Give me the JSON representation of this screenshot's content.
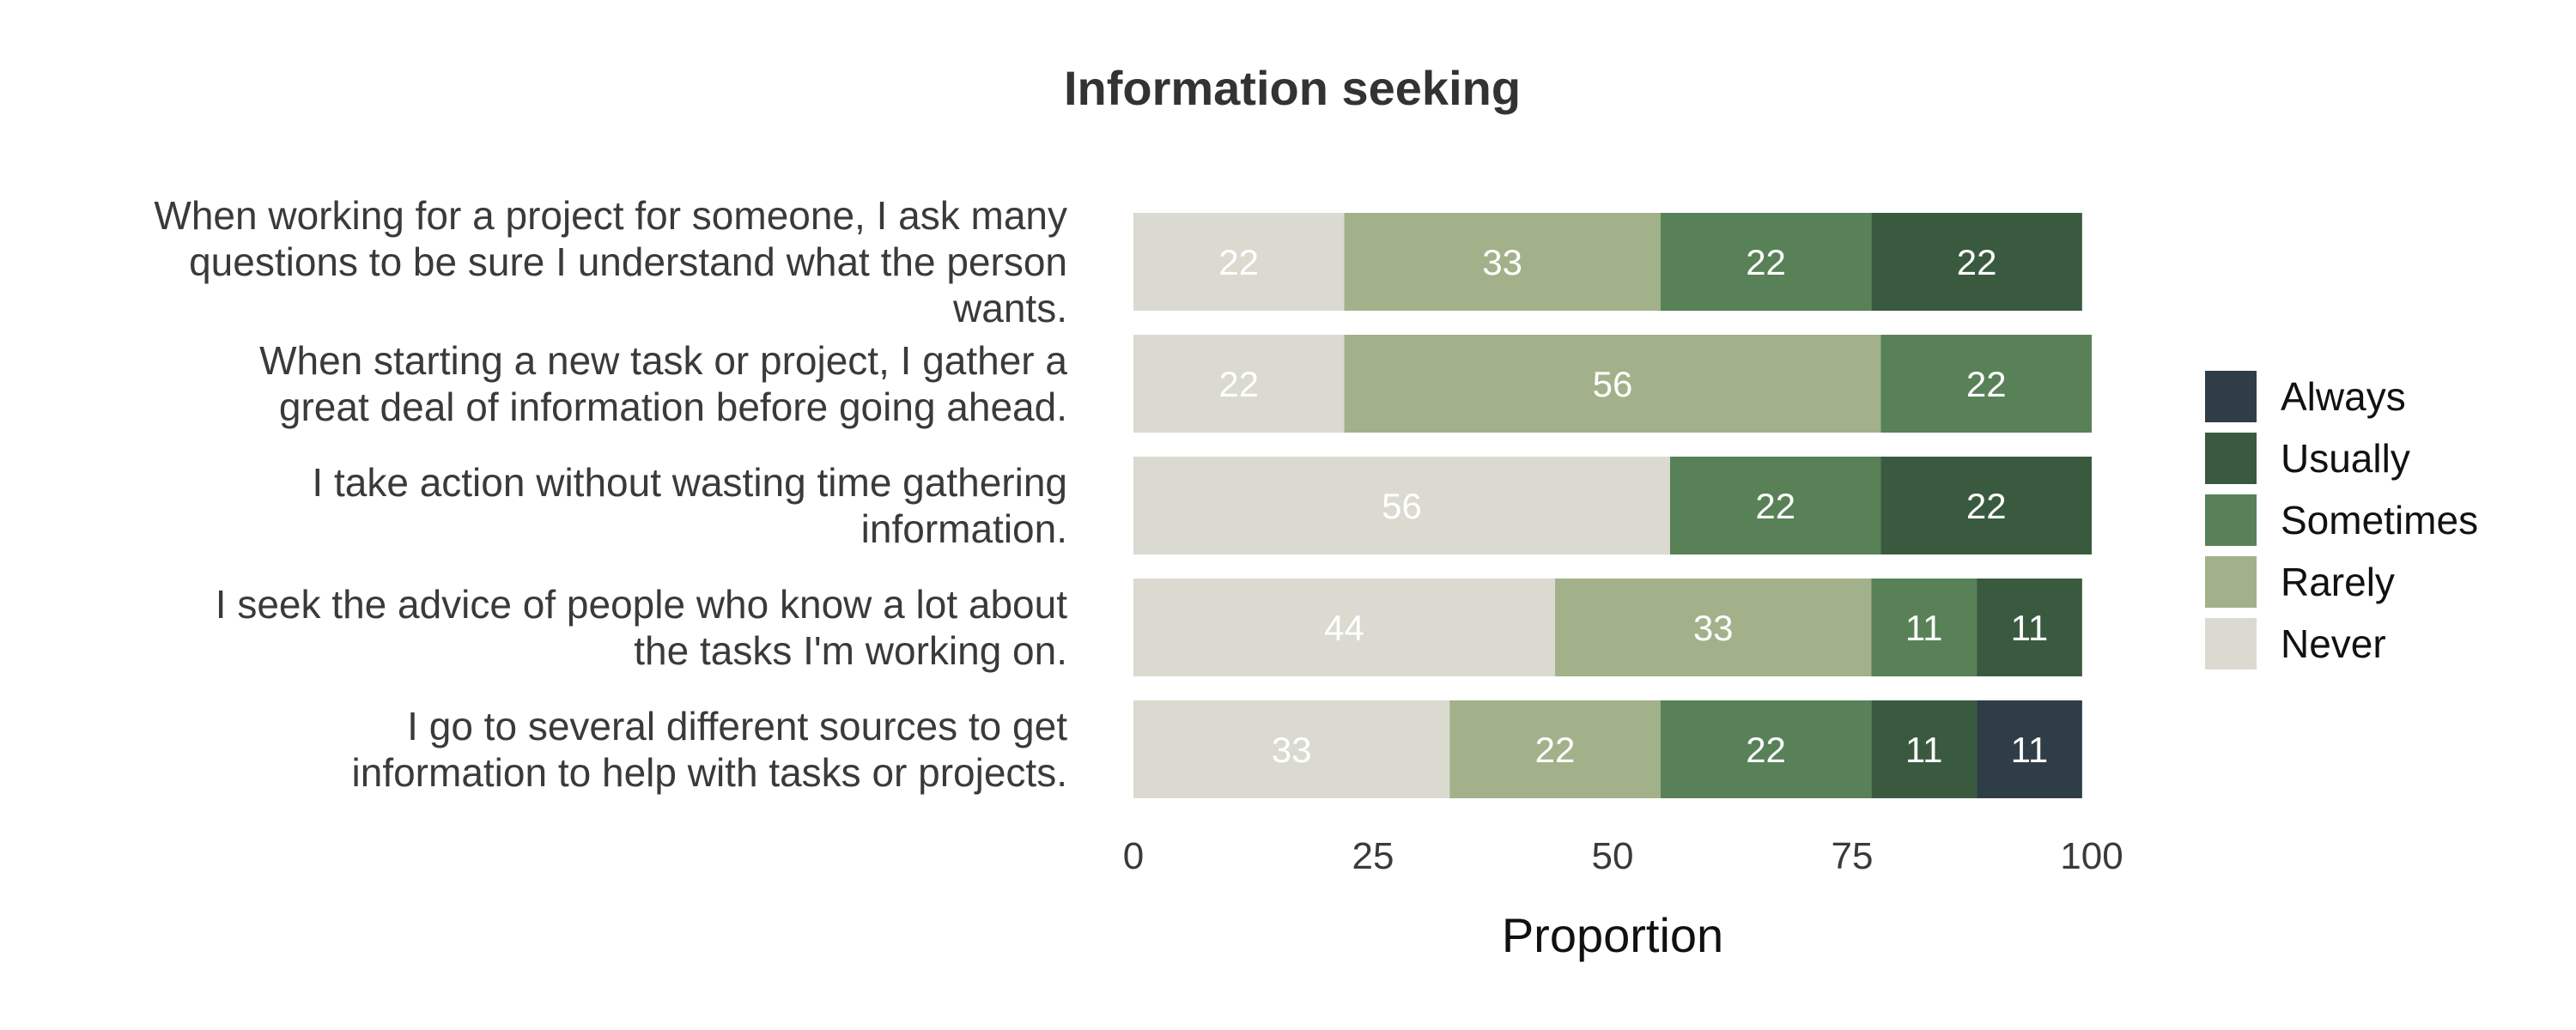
{
  "chart_data": {
    "type": "bar",
    "orientation": "horizontal",
    "stacked": true,
    "title": "Information seeking",
    "xlabel": "Proportion",
    "ylabel": "",
    "xlim": [
      0,
      100
    ],
    "xticks": [
      "0",
      "25",
      "50",
      "75",
      "100"
    ],
    "legend_position": "right",
    "grid": false,
    "categories": [
      [
        "When working for a project for someone, I ask many",
        "questions to be sure I understand what the person",
        "wants."
      ],
      [
        "When starting a new task or project, I gather a",
        "great deal of information before going ahead."
      ],
      [
        "I take action without wasting time gathering",
        "information."
      ],
      [
        "I seek the advice of people who know a lot about",
        "the tasks I'm working on."
      ],
      [
        "I go to several different sources to get",
        "information to help with tasks or projects."
      ]
    ],
    "series": [
      {
        "name": "Never",
        "color": "#dadad0",
        "values": [
          22,
          22,
          56,
          44,
          33
        ]
      },
      {
        "name": "Rarely",
        "color": "#a3b18a",
        "values": [
          33,
          56,
          0,
          33,
          22
        ]
      },
      {
        "name": "Sometimes",
        "color": "#588157",
        "values": [
          22,
          22,
          22,
          11,
          22
        ]
      },
      {
        "name": "Usually",
        "color": "#3a5a40",
        "values": [
          22,
          0,
          22,
          11,
          11
        ]
      },
      {
        "name": "Always",
        "color": "#2f3e46",
        "values": [
          0,
          0,
          0,
          0,
          11
        ]
      }
    ],
    "legend_order": [
      "Always",
      "Usually",
      "Sometimes",
      "Rarely",
      "Never"
    ]
  }
}
